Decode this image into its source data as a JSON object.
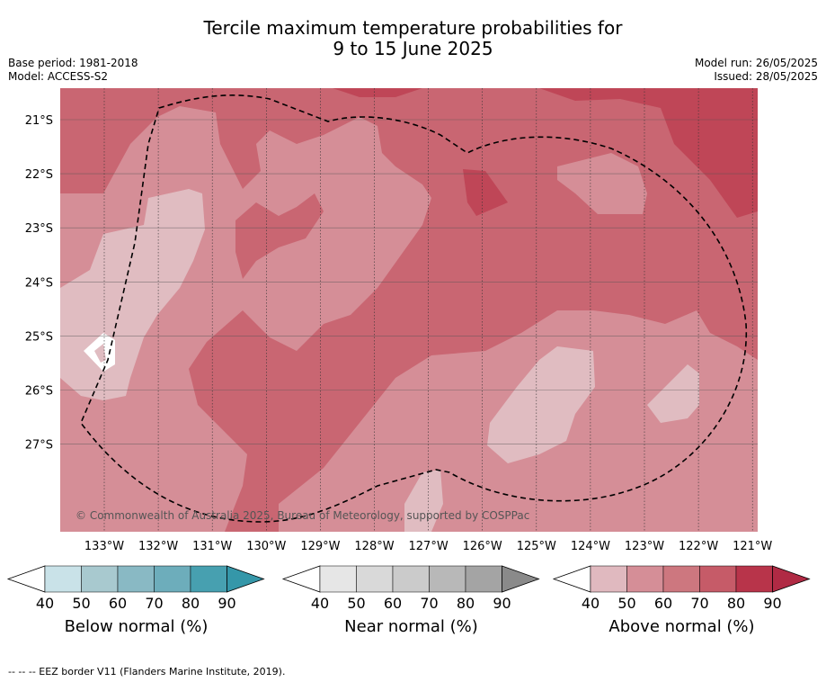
{
  "title_line1": "Tercile maximum temperature probabilities for",
  "title_line2": "9 to 15 June 2025",
  "meta_left": [
    "Base period: 1981-2018",
    "Model: ACCESS-S2"
  ],
  "meta_right": [
    "Model run: 26/05/2025",
    "Issued: 28/05/2025"
  ],
  "lat_labels": [
    "21°S",
    "22°S",
    "23°S",
    "24°S",
    "25°S",
    "26°S",
    "27°S"
  ],
  "lon_labels": [
    "133°W",
    "132°W",
    "131°W",
    "130°W",
    "129°W",
    "128°W",
    "127°W",
    "126°W",
    "125°W",
    "124°W",
    "123°W",
    "122°W",
    "121°W"
  ],
  "copyright": "© Commonwealth of Australia 2025, Bureau of Meteorology, supported by COSPPac",
  "colorbars": [
    {
      "title": "Below normal (%)",
      "ticks": [
        "40",
        "50",
        "60",
        "70",
        "80",
        "90"
      ],
      "colors": [
        "#c9e2e8",
        "#a8c9cf",
        "#89b9c4",
        "#6dadbb",
        "#47a0b0",
        "#3597a9"
      ]
    },
    {
      "title": "Near normal (%)",
      "ticks": [
        "40",
        "50",
        "60",
        "70",
        "80",
        "90"
      ],
      "colors": [
        "#e6e6e6",
        "#d9d9d9",
        "#cbcbcb",
        "#b8b8b8",
        "#a4a4a4",
        "#8a8a8a"
      ]
    },
    {
      "title": "Above normal (%)",
      "ticks": [
        "40",
        "50",
        "60",
        "70",
        "80",
        "90"
      ],
      "colors": [
        "#e0b9bf",
        "#d58e97",
        "#cd777f",
        "#c65b68",
        "#b8344a",
        "#b02a44"
      ]
    }
  ],
  "footnote": "--  --  -- EEZ border V11 (Flanders Marine Institute, 2019).",
  "map_colors": {
    "c50": "#d58e97",
    "c40": "#e0bcc1",
    "c60": "#c96672",
    "c80": "#bf4657"
  }
}
